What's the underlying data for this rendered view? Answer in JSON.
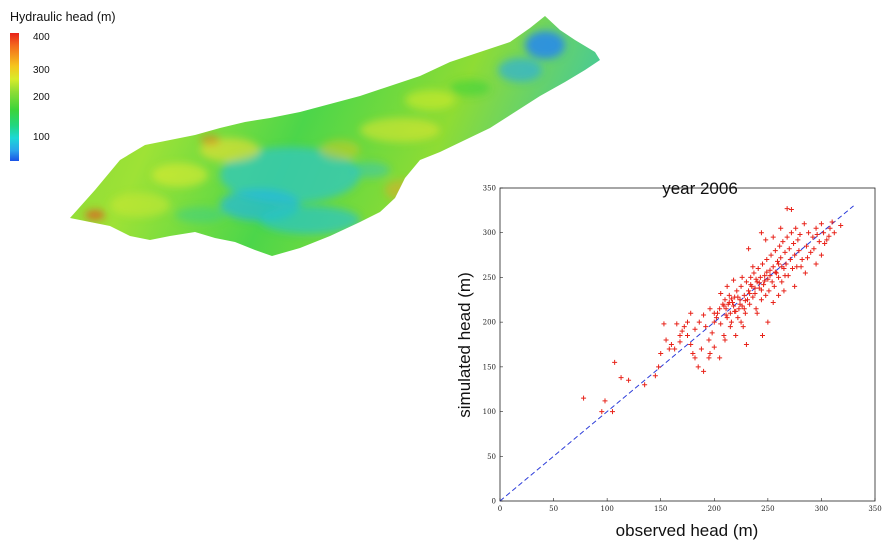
{
  "legend": {
    "title": "Hydraulic head (m)",
    "labels": [
      "400",
      "300",
      "200",
      "100"
    ],
    "colors": [
      "#1a52e6",
      "#2aa2ec",
      "#1cd8d6",
      "#22d67e",
      "#3cd43a",
      "#8edc34",
      "#d8ec2a",
      "#f5c61e",
      "#f46a1c",
      "#e8221a"
    ]
  },
  "chart_data": {
    "type": "scatter",
    "title": "year 2006",
    "xlabel": "observed head (m)",
    "ylabel": "simulated head (m)",
    "xlim": [
      0,
      350
    ],
    "ylim": [
      0,
      350
    ],
    "xticks": [
      "0",
      "50",
      "100",
      "150",
      "200",
      "250",
      "300",
      "350"
    ],
    "yticks": [
      "0",
      "50",
      "100",
      "150",
      "200",
      "250",
      "300",
      "350"
    ],
    "marker": "+",
    "marker_color": "#e8231a",
    "reference_line": {
      "style": "dashed",
      "color": "#2b3bd9",
      "x": [
        0,
        330
      ],
      "y": [
        0,
        330
      ]
    },
    "points": [
      [
        78,
        115
      ],
      [
        95,
        100
      ],
      [
        98,
        112
      ],
      [
        105,
        100
      ],
      [
        107,
        155
      ],
      [
        113,
        138
      ],
      [
        120,
        135
      ],
      [
        135,
        130
      ],
      [
        145,
        140
      ],
      [
        148,
        150
      ],
      [
        150,
        165
      ],
      [
        153,
        198
      ],
      [
        155,
        180
      ],
      [
        158,
        170
      ],
      [
        160,
        175
      ],
      [
        163,
        170
      ],
      [
        165,
        198
      ],
      [
        168,
        178
      ],
      [
        170,
        190
      ],
      [
        175,
        185
      ],
      [
        178,
        175
      ],
      [
        182,
        160
      ],
      [
        185,
        150
      ],
      [
        188,
        170
      ],
      [
        190,
        145
      ],
      [
        192,
        195
      ],
      [
        195,
        180
      ],
      [
        196,
        165
      ],
      [
        198,
        188
      ],
      [
        200,
        200
      ],
      [
        202,
        205
      ],
      [
        203,
        210
      ],
      [
        205,
        215
      ],
      [
        206,
        198
      ],
      [
        208,
        220
      ],
      [
        209,
        185
      ],
      [
        210,
        225
      ],
      [
        211,
        215
      ],
      [
        212,
        205
      ],
      [
        213,
        220
      ],
      [
        214,
        230
      ],
      [
        215,
        210
      ],
      [
        216,
        200
      ],
      [
        217,
        222
      ],
      [
        218,
        218
      ],
      [
        219,
        228
      ],
      [
        220,
        212
      ],
      [
        221,
        235
      ],
      [
        222,
        205
      ],
      [
        223,
        215
      ],
      [
        224,
        225
      ],
      [
        225,
        240
      ],
      [
        226,
        218
      ],
      [
        227,
        195
      ],
      [
        228,
        230
      ],
      [
        229,
        210
      ],
      [
        230,
        245
      ],
      [
        231,
        225
      ],
      [
        232,
        235
      ],
      [
        233,
        220
      ],
      [
        234,
        250
      ],
      [
        235,
        240
      ],
      [
        236,
        228
      ],
      [
        237,
        255
      ],
      [
        238,
        232
      ],
      [
        239,
        215
      ],
      [
        240,
        245
      ],
      [
        241,
        260
      ],
      [
        242,
        238
      ],
      [
        243,
        250
      ],
      [
        244,
        225
      ],
      [
        245,
        265
      ],
      [
        246,
        242
      ],
      [
        247,
        252
      ],
      [
        248,
        230
      ],
      [
        249,
        270
      ],
      [
        250,
        248
      ],
      [
        251,
        235
      ],
      [
        252,
        258
      ],
      [
        253,
        275
      ],
      [
        254,
        245
      ],
      [
        255,
        262
      ],
      [
        256,
        240
      ],
      [
        257,
        280
      ],
      [
        258,
        255
      ],
      [
        259,
        268
      ],
      [
        260,
        250
      ],
      [
        261,
        285
      ],
      [
        262,
        272
      ],
      [
        263,
        245
      ],
      [
        264,
        290
      ],
      [
        265,
        260
      ],
      [
        266,
        278
      ],
      [
        267,
        265
      ],
      [
        268,
        295
      ],
      [
        269,
        252
      ],
      [
        270,
        282
      ],
      [
        271,
        270
      ],
      [
        272,
        300
      ],
      [
        273,
        260
      ],
      [
        274,
        288
      ],
      [
        275,
        275
      ],
      [
        276,
        305
      ],
      [
        277,
        262
      ],
      [
        278,
        292
      ],
      [
        279,
        280
      ],
      [
        280,
        298
      ],
      [
        282,
        270
      ],
      [
        284,
        310
      ],
      [
        286,
        285
      ],
      [
        288,
        300
      ],
      [
        290,
        278
      ],
      [
        292,
        295
      ],
      [
        295,
        305
      ],
      [
        298,
        290
      ],
      [
        300,
        310
      ],
      [
        302,
        300
      ],
      [
        305,
        292
      ],
      [
        308,
        305
      ],
      [
        310,
        312
      ],
      [
        268,
        327
      ],
      [
        272,
        326
      ],
      [
        262,
        305
      ],
      [
        255,
        295
      ],
      [
        248,
        292
      ],
      [
        244,
        300
      ],
      [
        236,
        262
      ],
      [
        232,
        282
      ],
      [
        226,
        250
      ],
      [
        218,
        247
      ],
      [
        212,
        240
      ],
      [
        206,
        232
      ],
      [
        200,
        210
      ],
      [
        196,
        215
      ],
      [
        190,
        208
      ],
      [
        186,
        200
      ],
      [
        182,
        192
      ],
      [
        178,
        210
      ],
      [
        172,
        195
      ],
      [
        168,
        185
      ],
      [
        240,
        210
      ],
      [
        245,
        185
      ],
      [
        250,
        200
      ],
      [
        255,
        222
      ],
      [
        260,
        230
      ],
      [
        265,
        235
      ],
      [
        275,
        240
      ],
      [
        285,
        255
      ],
      [
        295,
        265
      ],
      [
        300,
        275
      ],
      [
        230,
        175
      ],
      [
        225,
        200
      ],
      [
        220,
        185
      ],
      [
        215,
        195
      ],
      [
        210,
        180
      ],
      [
        205,
        160
      ],
      [
        200,
        172
      ],
      [
        195,
        160
      ],
      [
        180,
        165
      ],
      [
        175,
        200
      ],
      [
        228,
        215
      ],
      [
        222,
        228
      ],
      [
        219,
        212
      ],
      [
        233,
        232
      ],
      [
        238,
        238
      ],
      [
        242,
        244
      ],
      [
        247,
        246
      ],
      [
        252,
        252
      ],
      [
        257,
        256
      ],
      [
        263,
        262
      ],
      [
        209,
        218
      ],
      [
        214,
        222
      ],
      [
        211,
        208
      ],
      [
        216,
        226
      ],
      [
        224,
        220
      ],
      [
        229,
        224
      ],
      [
        234,
        242
      ],
      [
        239,
        248
      ],
      [
        244,
        236
      ],
      [
        249,
        256
      ],
      [
        281,
        262
      ],
      [
        287,
        272
      ],
      [
        293,
        282
      ],
      [
        296,
        298
      ],
      [
        303,
        288
      ],
      [
        307,
        296
      ],
      [
        312,
        300
      ],
      [
        318,
        308
      ],
      [
        260,
        265
      ],
      [
        266,
        252
      ]
    ]
  }
}
